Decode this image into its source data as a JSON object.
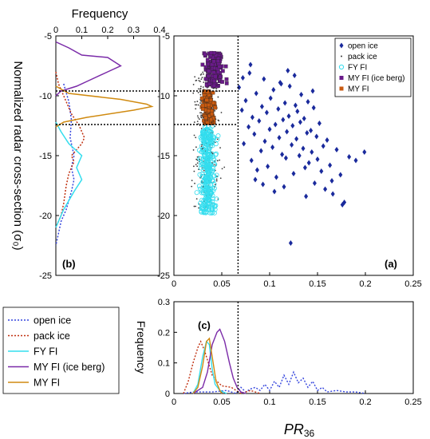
{
  "colors": {
    "open_ice": "#1a2a9c",
    "open_ice_line": "#3344dd",
    "pack_ice": "#3a3a3a",
    "pack_ice_line": "#c03010",
    "fy_fi": "#33ddee",
    "my_fi_iceberg": "#6a1a8a",
    "my_fi_iceberg_line": "#7a2aa8",
    "my_fi": "#c85a10",
    "my_fi_line": "#d08a10"
  },
  "chart_data": [
    {
      "panel": "(a)",
      "type": "scatter",
      "xlim": [
        0,
        0.25
      ],
      "ylim": [
        -25,
        -5
      ],
      "xticks": [
        "0",
        "0.05",
        "0.1",
        "0.15",
        "0.2",
        "0.25"
      ],
      "yticks": [
        "-5",
        "-10",
        "-15",
        "-20",
        "-25"
      ],
      "xlabel": "PR",
      "xlabel_sub": "36",
      "ylabel": "Normalized radar cross-section (σ₀)",
      "threshold_x": 0.067,
      "threshold_y": [
        -9.6,
        -12.3
      ],
      "legend_position": "top-right",
      "series": [
        {
          "name": "open ice",
          "marker": "diamond",
          "points": [
            [
              0.068,
              -9.3
            ],
            [
              0.071,
              -11.2
            ],
            [
              0.073,
              -14.0
            ],
            [
              0.075,
              -10.4
            ],
            [
              0.078,
              -12.6
            ],
            [
              0.079,
              -8.1
            ],
            [
              0.081,
              -15.4
            ],
            [
              0.082,
              -11.8
            ],
            [
              0.084,
              -13.2
            ],
            [
              0.086,
              -9.8
            ],
            [
              0.087,
              -16.2
            ],
            [
              0.089,
              -12.1
            ],
            [
              0.091,
              -14.6
            ],
            [
              0.092,
              -10.9
            ],
            [
              0.094,
              -8.6
            ],
            [
              0.095,
              -13.8
            ],
            [
              0.097,
              -11.4
            ],
            [
              0.098,
              -15.9
            ],
            [
              0.1,
              -12.8
            ],
            [
              0.101,
              -10.2
            ],
            [
              0.103,
              -14.3
            ],
            [
              0.104,
              -9.5
            ],
            [
              0.106,
              -12.4
            ],
            [
              0.107,
              -16.8
            ],
            [
              0.109,
              -11.1
            ],
            [
              0.11,
              -13.5
            ],
            [
              0.111,
              -8.9
            ],
            [
              0.113,
              -14.9
            ],
            [
              0.114,
              -12.0
            ],
            [
              0.116,
              -10.6
            ],
            [
              0.117,
              -15.2
            ],
            [
              0.118,
              -13.0
            ],
            [
              0.12,
              -11.7
            ],
            [
              0.121,
              -9.2
            ],
            [
              0.123,
              -14.1
            ],
            [
              0.124,
              -12.5
            ],
            [
              0.125,
              -16.5
            ],
            [
              0.127,
              -10.8
            ],
            [
              0.128,
              -13.6
            ],
            [
              0.129,
              -11.3
            ],
            [
              0.131,
              -15.0
            ],
            [
              0.132,
              -12.2
            ],
            [
              0.133,
              -9.9
            ],
            [
              0.135,
              -14.4
            ],
            [
              0.136,
              -11.9
            ],
            [
              0.137,
              -16.0
            ],
            [
              0.139,
              -13.1
            ],
            [
              0.14,
              -10.5
            ],
            [
              0.141,
              -15.6
            ],
            [
              0.143,
              -12.9
            ],
            [
              0.144,
              -14.7
            ],
            [
              0.146,
              -11.0
            ],
            [
              0.147,
              -17.3
            ],
            [
              0.149,
              -13.4
            ],
            [
              0.15,
              -15.3
            ],
            [
              0.152,
              -12.3
            ],
            [
              0.154,
              -16.3
            ],
            [
              0.156,
              -14.2
            ],
            [
              0.158,
              -17.8
            ],
            [
              0.16,
              -13.7
            ],
            [
              0.163,
              -15.8
            ],
            [
              0.166,
              -18.2
            ],
            [
              0.17,
              -14.5
            ],
            [
              0.174,
              -16.6
            ],
            [
              0.178,
              -18.9
            ],
            [
              0.183,
              -15.1
            ],
            [
              0.19,
              -15.4
            ],
            [
              0.199,
              -14.7
            ],
            [
              0.122,
              -22.3
            ],
            [
              0.085,
              -17.0
            ],
            [
              0.093,
              -17.4
            ],
            [
              0.105,
              -18.0
            ],
            [
              0.115,
              -17.6
            ],
            [
              0.138,
              -18.4
            ],
            [
              0.165,
              -17.1
            ],
            [
              0.176,
              -19.1
            ],
            [
              0.072,
              -8.5
            ],
            [
              0.08,
              -7.4
            ],
            [
              0.112,
              -9.0
            ],
            [
              0.126,
              -8.3
            ],
            [
              0.145,
              -9.6
            ],
            [
              0.119,
              -7.9
            ]
          ]
        },
        {
          "name": "pack ice",
          "marker": "dot",
          "cluster": {
            "x_center": 0.034,
            "x_spread": 0.016,
            "y_min": -19.5,
            "y_max": -8.0,
            "count": 260
          }
        },
        {
          "name": "FY FI",
          "marker": "circle",
          "cluster": {
            "x_center": 0.035,
            "x_spread": 0.009,
            "y_min": -19.8,
            "y_max": -12.5,
            "count": 320
          }
        },
        {
          "name": "MY FI (ice berg)",
          "marker": "square",
          "cluster": {
            "x_center": 0.041,
            "x_spread": 0.011,
            "y_min": -9.2,
            "y_max": -6.4,
            "count": 170
          }
        },
        {
          "name": "MY FI",
          "marker": "square",
          "cluster": {
            "x_center": 0.036,
            "x_spread": 0.006,
            "y_min": -12.3,
            "y_max": -9.6,
            "count": 170
          }
        }
      ]
    },
    {
      "panel": "(b)",
      "type": "line",
      "orientation": "horizontal-frequency",
      "title": "Frequency",
      "xlim": [
        0,
        0.4
      ],
      "xticks": [
        "0",
        "0.1",
        "0.2",
        "0.3",
        "0.4"
      ],
      "ylim": [
        -25,
        -5
      ],
      "yticks": [
        "-5",
        "-10",
        "-15",
        "-20",
        "-25"
      ],
      "series": [
        {
          "name": "open ice",
          "points": [
            [
              0.03,
              -9.0
            ],
            [
              0.05,
              -10.5
            ],
            [
              0.06,
              -12.0
            ],
            [
              0.055,
              -13.5
            ],
            [
              0.07,
              -15.0
            ],
            [
              0.06,
              -16.0
            ],
            [
              0.07,
              -17.0
            ],
            [
              0.06,
              -18.0
            ],
            [
              0.04,
              -19.5
            ],
            [
              0.02,
              -20.5
            ],
            [
              0.01,
              -21.5
            ],
            [
              0.0,
              -22.5
            ]
          ]
        },
        {
          "name": "pack ice",
          "points": [
            [
              0.0,
              -8.0
            ],
            [
              0.01,
              -9.0
            ],
            [
              0.03,
              -10.0
            ],
            [
              0.06,
              -11.5
            ],
            [
              0.09,
              -12.5
            ],
            [
              0.11,
              -13.5
            ],
            [
              0.1,
              -14.0
            ],
            [
              0.08,
              -14.5
            ],
            [
              0.06,
              -15.0
            ],
            [
              0.07,
              -15.5
            ],
            [
              0.05,
              -16.5
            ],
            [
              0.04,
              -17.5
            ],
            [
              0.03,
              -19.0
            ],
            [
              0.02,
              -20.0
            ],
            [
              0.0,
              -21.0
            ]
          ]
        },
        {
          "name": "FY FI",
          "points": [
            [
              0.0,
              -12.2
            ],
            [
              0.02,
              -13.0
            ],
            [
              0.05,
              -14.0
            ],
            [
              0.1,
              -15.0
            ],
            [
              0.08,
              -16.0
            ],
            [
              0.1,
              -17.0
            ],
            [
              0.07,
              -18.0
            ],
            [
              0.03,
              -19.5
            ],
            [
              0.01,
              -20.5
            ],
            [
              0.0,
              -21.0
            ]
          ]
        },
        {
          "name": "MY FI (ice berg)",
          "points": [
            [
              0.0,
              -5.5
            ],
            [
              0.05,
              -6.0
            ],
            [
              0.1,
              -6.6
            ],
            [
              0.2,
              -6.8
            ],
            [
              0.25,
              -7.5
            ],
            [
              0.2,
              -8.0
            ],
            [
              0.12,
              -8.8
            ],
            [
              0.08,
              -9.2
            ],
            [
              0.02,
              -9.6
            ],
            [
              0.0,
              -10.0
            ]
          ]
        },
        {
          "name": "MY FI",
          "points": [
            [
              0.0,
              -9.2
            ],
            [
              0.05,
              -9.8
            ],
            [
              0.25,
              -10.3
            ],
            [
              0.35,
              -10.7
            ],
            [
              0.37,
              -10.9
            ],
            [
              0.3,
              -11.2
            ],
            [
              0.12,
              -11.8
            ],
            [
              0.03,
              -12.2
            ],
            [
              0.0,
              -12.6
            ]
          ]
        }
      ]
    },
    {
      "panel": "(c)",
      "type": "line",
      "ylabel": "Frequency",
      "xlim": [
        0,
        0.25
      ],
      "xticks": [
        "0",
        "0.05",
        "0.1",
        "0.15",
        "0.2",
        "0.25"
      ],
      "ylim": [
        0,
        0.3
      ],
      "yticks": [
        "0",
        "0.1",
        "0.2",
        "0.3"
      ],
      "series": [
        {
          "name": "open ice",
          "points": [
            [
              0.01,
              0.0
            ],
            [
              0.02,
              0.005
            ],
            [
              0.04,
              0.005
            ],
            [
              0.055,
              0.01
            ],
            [
              0.065,
              0.0
            ],
            [
              0.07,
              0.02
            ],
            [
              0.075,
              0.005
            ],
            [
              0.08,
              0.015
            ],
            [
              0.085,
              0.02
            ],
            [
              0.09,
              0.01
            ],
            [
              0.095,
              0.03
            ],
            [
              0.1,
              0.01
            ],
            [
              0.105,
              0.04
            ],
            [
              0.11,
              0.02
            ],
            [
              0.115,
              0.06
            ],
            [
              0.12,
              0.03
            ],
            [
              0.125,
              0.07
            ],
            [
              0.13,
              0.035
            ],
            [
              0.135,
              0.05
            ],
            [
              0.14,
              0.02
            ],
            [
              0.145,
              0.04
            ],
            [
              0.15,
              0.01
            ],
            [
              0.155,
              0.02
            ],
            [
              0.16,
              0.005
            ],
            [
              0.17,
              0.01
            ],
            [
              0.18,
              0.005
            ],
            [
              0.19,
              0.005
            ],
            [
              0.2,
              0.0
            ]
          ]
        },
        {
          "name": "pack ice",
          "points": [
            [
              0.01,
              0.0
            ],
            [
              0.015,
              0.04
            ],
            [
              0.02,
              0.1
            ],
            [
              0.025,
              0.15
            ],
            [
              0.028,
              0.17
            ],
            [
              0.032,
              0.14
            ],
            [
              0.036,
              0.1
            ],
            [
              0.04,
              0.06
            ],
            [
              0.045,
              0.04
            ],
            [
              0.05,
              0.025
            ],
            [
              0.06,
              0.02
            ],
            [
              0.065,
              0.01
            ],
            [
              0.07,
              0.0
            ],
            [
              0.08,
              0.01
            ],
            [
              0.09,
              0.0
            ]
          ]
        },
        {
          "name": "FY FI",
          "points": [
            [
              0.02,
              0.0
            ],
            [
              0.025,
              0.03
            ],
            [
              0.03,
              0.12
            ],
            [
              0.034,
              0.17
            ],
            [
              0.037,
              0.16
            ],
            [
              0.04,
              0.08
            ],
            [
              0.043,
              0.03
            ],
            [
              0.048,
              0.01
            ],
            [
              0.055,
              0.0
            ]
          ]
        },
        {
          "name": "MY FI (ice berg)",
          "points": [
            [
              0.02,
              0.0
            ],
            [
              0.03,
              0.02
            ],
            [
              0.035,
              0.07
            ],
            [
              0.04,
              0.16
            ],
            [
              0.045,
              0.2
            ],
            [
              0.048,
              0.21
            ],
            [
              0.053,
              0.17
            ],
            [
              0.058,
              0.1
            ],
            [
              0.062,
              0.05
            ],
            [
              0.066,
              0.02
            ],
            [
              0.07,
              0.005
            ],
            [
              0.075,
              0.0
            ]
          ]
        },
        {
          "name": "MY FI",
          "points": [
            [
              0.02,
              0.0
            ],
            [
              0.025,
              0.02
            ],
            [
              0.03,
              0.09
            ],
            [
              0.034,
              0.17
            ],
            [
              0.037,
              0.18
            ],
            [
              0.04,
              0.12
            ],
            [
              0.044,
              0.04
            ],
            [
              0.048,
              0.01
            ],
            [
              0.05,
              0.0
            ]
          ]
        }
      ],
      "threshold_x": 0.067
    }
  ],
  "legend_main": {
    "items": [
      {
        "label": "open ice",
        "color": "#1a2a9c",
        "marker": "diamond"
      },
      {
        "label": "pack ice",
        "color": "#3a3a3a",
        "marker": "dot"
      },
      {
        "label": "FY FI",
        "color": "#33ddee",
        "marker": "circle"
      },
      {
        "label": "MY FI (ice berg)",
        "color": "#6a1a8a",
        "marker": "square"
      },
      {
        "label": "MY FI",
        "color": "#c85a10",
        "marker": "square"
      }
    ]
  },
  "legend_lines": {
    "items": [
      {
        "label": "open ice",
        "color": "#3344dd",
        "dash": "2,2"
      },
      {
        "label": "pack ice",
        "color": "#c03010",
        "dash": "2,2"
      },
      {
        "label": "FY FI",
        "color": "#33ddee",
        "dash": ""
      },
      {
        "label": "MY FI (ice berg)",
        "color": "#7a2aa8",
        "dash": ""
      },
      {
        "label": "MY FI",
        "color": "#d08a10",
        "dash": ""
      }
    ]
  },
  "labels": {
    "panel_a": "(a)",
    "panel_b": "(b)",
    "panel_c": "(c)",
    "freq_top": "Frequency",
    "freq_c": "Frequency",
    "ylabel_main": "Normalized radar cross-section (σ₀)",
    "xlabel_main": "PR",
    "xlabel_sub": "36"
  }
}
